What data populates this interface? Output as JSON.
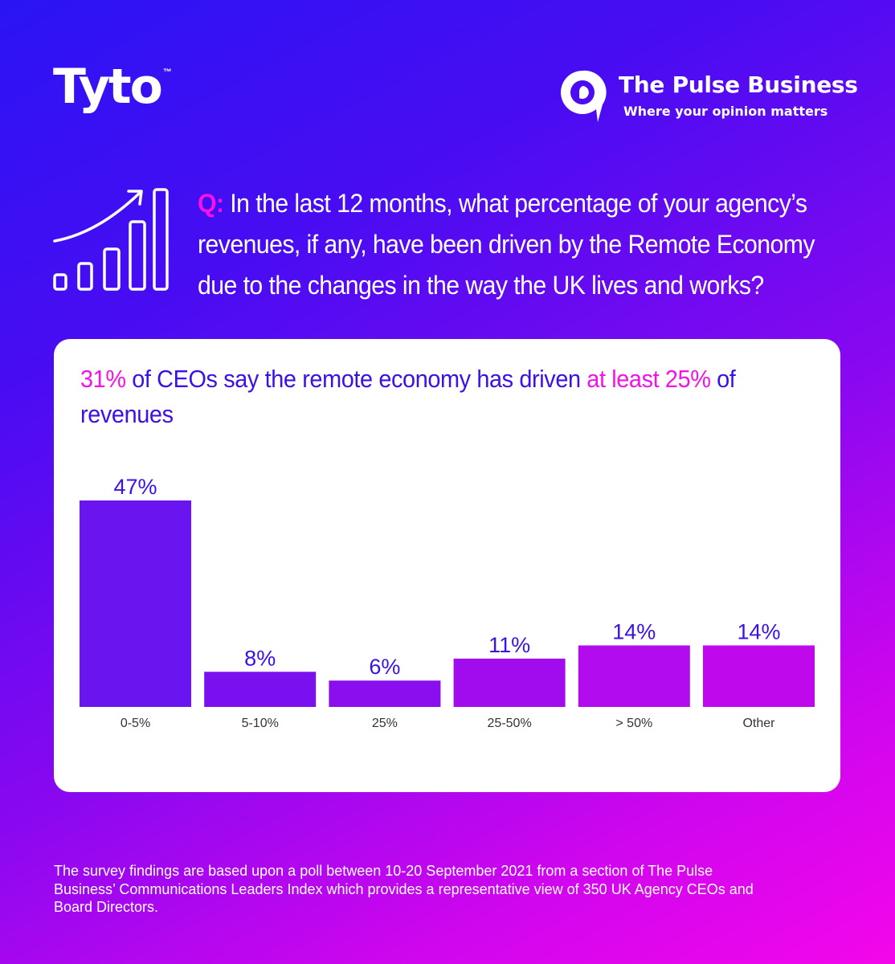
{
  "brand": {
    "tyto": {
      "name": "Tyto",
      "trademark": "™"
    },
    "pulse": {
      "name": "The Pulse Business",
      "tagline": "Where your opinion matters"
    }
  },
  "question": {
    "prefix": "Q:",
    "text": "In the last 12 months, what percentage of your agency’s revenues, if any, have been driven by the Remote Economy due to the changes in the way the UK lives and works?"
  },
  "headline": {
    "part1": "31%",
    "part2": " of CEOs say the remote economy has driven ",
    "part3": "at least 25%",
    "part4": " of revenues"
  },
  "chart_data": {
    "type": "bar",
    "categories": [
      "0-5%",
      "5-10%",
      "25%",
      "25-50%",
      "> 50%",
      "Other"
    ],
    "values": [
      47,
      8,
      6,
      11,
      14,
      14
    ],
    "data_labels": [
      "47%",
      "8%",
      "6%",
      "11%",
      "14%",
      "14%"
    ],
    "bar_colors": [
      "#6a14f0",
      "#7a10ef",
      "#8a0eee",
      "#a00cee",
      "#b20bee",
      "#c008ec"
    ],
    "label_color": "#3c10e6",
    "tick_color": "#333333",
    "ylim": [
      0,
      47
    ],
    "grid": false
  },
  "footnote": "The survey findings are based upon a poll between 10-20 September 2021 from a section of The Pulse Business’ Communications Leaders Index which provides a representative view of 350 UK Agency CEOs and Board Directors.",
  "colors": {
    "accent_pink": "#f412e8",
    "accent_blue": "#3c10e6",
    "background_start": "#2a14f4",
    "background_end": "#f406ea"
  }
}
